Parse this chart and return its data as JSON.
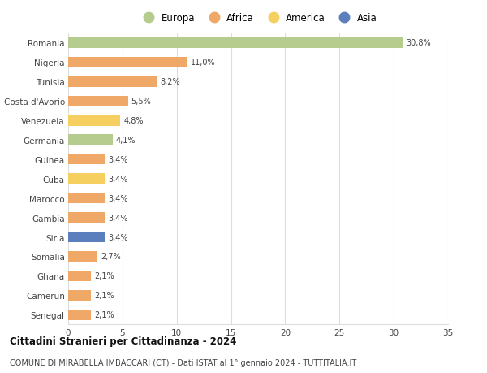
{
  "countries": [
    "Romania",
    "Nigeria",
    "Tunisia",
    "Costa d'Avorio",
    "Venezuela",
    "Germania",
    "Guinea",
    "Cuba",
    "Marocco",
    "Gambia",
    "Siria",
    "Somalia",
    "Ghana",
    "Camerun",
    "Senegal"
  ],
  "values": [
    30.8,
    11.0,
    8.2,
    5.5,
    4.8,
    4.1,
    3.4,
    3.4,
    3.4,
    3.4,
    3.4,
    2.7,
    2.1,
    2.1,
    2.1
  ],
  "labels": [
    "30,8%",
    "11,0%",
    "8,2%",
    "5,5%",
    "4,8%",
    "4,1%",
    "3,4%",
    "3,4%",
    "3,4%",
    "3,4%",
    "3,4%",
    "2,7%",
    "2,1%",
    "2,1%",
    "2,1%"
  ],
  "continent": [
    "Europa",
    "Africa",
    "Africa",
    "Africa",
    "America",
    "Europa",
    "Africa",
    "America",
    "Africa",
    "Africa",
    "Asia",
    "Africa",
    "Africa",
    "Africa",
    "Africa"
  ],
  "colors": {
    "Europa": "#b5cc8e",
    "Africa": "#f0a868",
    "America": "#f5d060",
    "Asia": "#5b7fbc"
  },
  "legend_order": [
    "Europa",
    "Africa",
    "America",
    "Asia"
  ],
  "title": "Cittadini Stranieri per Cittadinanza - 2024",
  "subtitle": "COMUNE DI MIRABELLA IMBACCARI (CT) - Dati ISTAT al 1° gennaio 2024 - TUTTITALIA.IT",
  "xlim": [
    0,
    35
  ],
  "xticks": [
    0,
    5,
    10,
    15,
    20,
    25,
    30,
    35
  ],
  "bg_color": "#ffffff",
  "grid_color": "#dddddd",
  "bar_height": 0.55
}
